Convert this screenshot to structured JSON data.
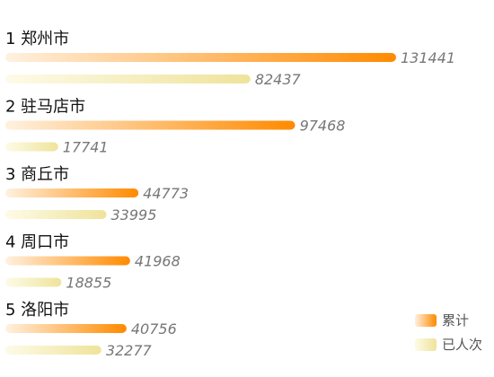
{
  "chart_data": {
    "type": "bar",
    "orientation": "horizontal",
    "categories": [
      "1 郑州市",
      "2 驻马店市",
      "3 商丘市",
      "4 周口市",
      "5 洛阳市"
    ],
    "series": [
      {
        "name": "累计",
        "values": [
          131441,
          97468,
          44773,
          41968,
          40756
        ],
        "color_start": "#fff1e0",
        "color_end": "#ff8a00"
      },
      {
        "name": "已人次",
        "values": [
          82437,
          17741,
          33995,
          18855,
          32277
        ],
        "color_start": "#fdfbe8",
        "color_end": "#efe39a"
      }
    ],
    "value_labels": [
      [
        "131441",
        "82437"
      ],
      [
        "97468",
        "17741"
      ],
      [
        "44773",
        "33995"
      ],
      [
        "41968",
        "18855"
      ],
      [
        "40756",
        "32277"
      ]
    ],
    "xlim": [
      0,
      131441
    ],
    "legend_position": "bottom-right",
    "grid": false
  }
}
